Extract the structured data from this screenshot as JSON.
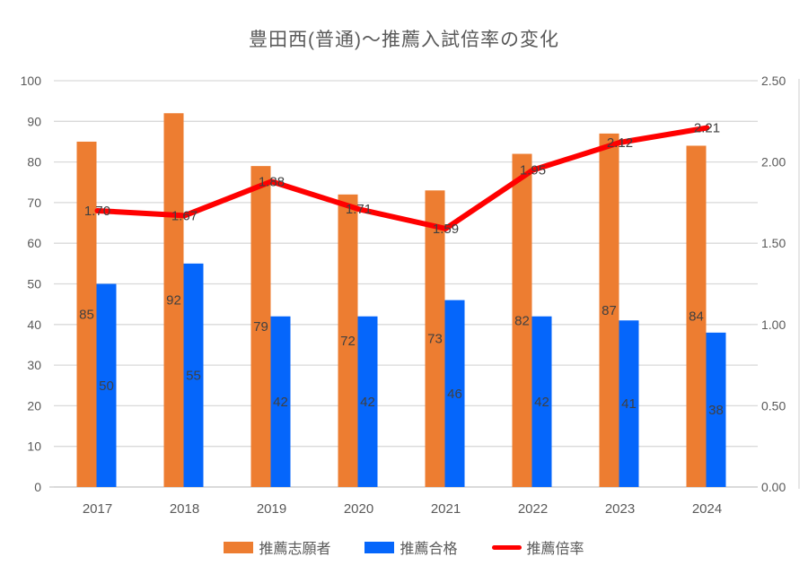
{
  "chart_data": {
    "type": "combo",
    "title": "豊田西(普通)～推薦入試倍率の変化",
    "categories": [
      "2017",
      "2018",
      "2019",
      "2020",
      "2021",
      "2022",
      "2023",
      "2024"
    ],
    "series": [
      {
        "name": "推薦志願者",
        "type": "bar",
        "axis": "left",
        "color": "#ED7D31",
        "values": [
          85,
          92,
          79,
          72,
          73,
          82,
          87,
          84
        ],
        "labels": [
          "85",
          "92",
          "79",
          "72",
          "73",
          "82",
          "87",
          "84"
        ]
      },
      {
        "name": "推薦合格",
        "type": "bar",
        "axis": "left",
        "color": "#0566FB",
        "values": [
          50,
          55,
          42,
          42,
          46,
          42,
          41,
          38
        ],
        "labels": [
          "50",
          "55",
          "42",
          "42",
          "46",
          "42",
          "41",
          "38"
        ]
      },
      {
        "name": "推薦倍率",
        "type": "line",
        "axis": "right",
        "color": "#FF0000",
        "values": [
          1.7,
          1.67,
          1.88,
          1.71,
          1.59,
          1.95,
          2.12,
          2.21
        ],
        "labels": [
          "1.70",
          "1.67",
          "1.88",
          "1.71",
          "1.59",
          "1.95",
          "2.12",
          "2.21"
        ]
      }
    ],
    "left_axis": {
      "min": 0,
      "max": 100,
      "step": 10,
      "tick_labels": [
        "0",
        "10",
        "20",
        "30",
        "40",
        "50",
        "60",
        "70",
        "80",
        "90",
        "100"
      ]
    },
    "right_axis": {
      "min": 0,
      "max": 2.5,
      "step": 0.5,
      "tick_labels": [
        "0.00",
        "0.50",
        "1.00",
        "1.50",
        "2.00",
        "2.50"
      ]
    },
    "grid": true,
    "legend_position": "bottom",
    "style": {
      "gridline_color": "#D9D9D9",
      "axis_line_color": "#C9C9C9",
      "axis_text_color": "#595959",
      "data_label_color": "#404040",
      "title_color": "#595959"
    }
  }
}
